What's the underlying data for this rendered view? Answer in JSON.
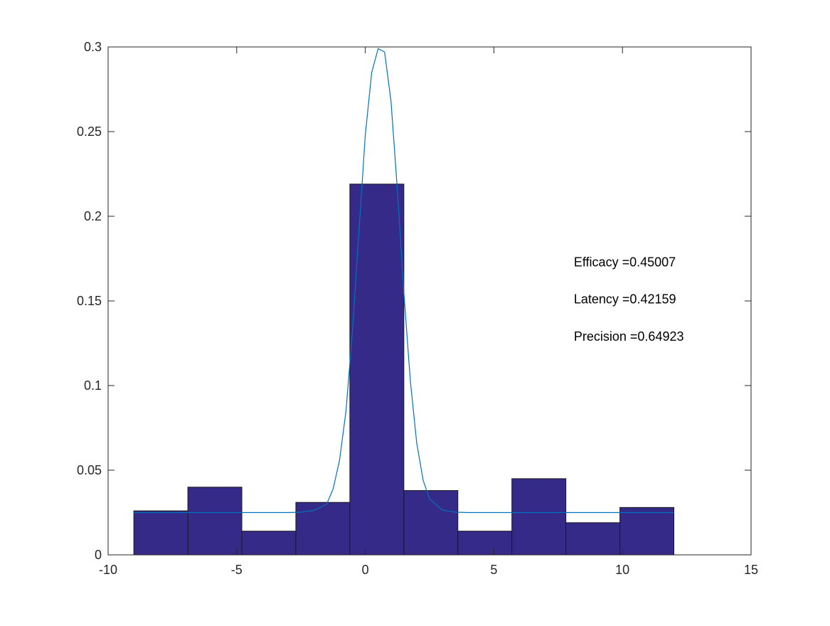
{
  "chart_data": {
    "type": "bar",
    "subtype": "histogram-with-fit",
    "title": "",
    "xlabel": "",
    "ylabel": "",
    "xlim": [
      -10,
      15
    ],
    "ylim": [
      0,
      0.3
    ],
    "xticks": [
      -10,
      -5,
      0,
      5,
      10,
      15
    ],
    "xtick_labels": [
      "-10",
      "-5",
      "0",
      "5",
      "10",
      "15"
    ],
    "yticks": [
      0,
      0.05,
      0.1,
      0.15,
      0.2,
      0.25,
      0.3
    ],
    "ytick_labels": [
      "0",
      "0.05",
      "0.1",
      "0.15",
      "0.2",
      "0.25",
      "0.3"
    ],
    "grid": false,
    "bin_edges": [
      -9.0,
      -6.9,
      -4.8,
      -2.7,
      -0.6,
      1.5,
      3.6,
      5.7,
      7.8,
      9.9,
      12.0
    ],
    "values": [
      0.026,
      0.04,
      0.014,
      0.031,
      0.219,
      0.038,
      0.014,
      0.045,
      0.019,
      0.028
    ],
    "bar_color": "#352a87",
    "bar_edge_color": "#1a1a1a",
    "series": [
      {
        "type": "line",
        "color": "#0072bd",
        "x": [
          -9,
          -8,
          -7,
          -6,
          -5,
          -4,
          -3,
          -2.5,
          -2,
          -1.5,
          -1.25,
          -1,
          -0.75,
          -0.5,
          -0.25,
          0,
          0.25,
          0.5,
          0.75,
          1,
          1.25,
          1.5,
          1.75,
          2,
          2.25,
          2.5,
          3,
          3.5,
          4,
          5,
          6,
          7,
          8,
          9,
          10,
          11,
          12
        ],
        "y": [
          0.025,
          0.025,
          0.025,
          0.025,
          0.025,
          0.025,
          0.025,
          0.0252,
          0.0262,
          0.03,
          0.039,
          0.056,
          0.085,
          0.132,
          0.19,
          0.248,
          0.285,
          0.299,
          0.297,
          0.268,
          0.215,
          0.155,
          0.103,
          0.066,
          0.044,
          0.033,
          0.0265,
          0.0252,
          0.025,
          0.025,
          0.025,
          0.025,
          0.025,
          0.025,
          0.025,
          0.025,
          0.025
        ]
      }
    ],
    "annotations": [
      {
        "text": "Efficacy =0.45007",
        "x": 8,
        "y": 0.173
      },
      {
        "text": "Latency =0.42159",
        "x": 8,
        "y": 0.151
      },
      {
        "text": "Precision =0.64923",
        "x": 8,
        "y": 0.129
      }
    ]
  }
}
